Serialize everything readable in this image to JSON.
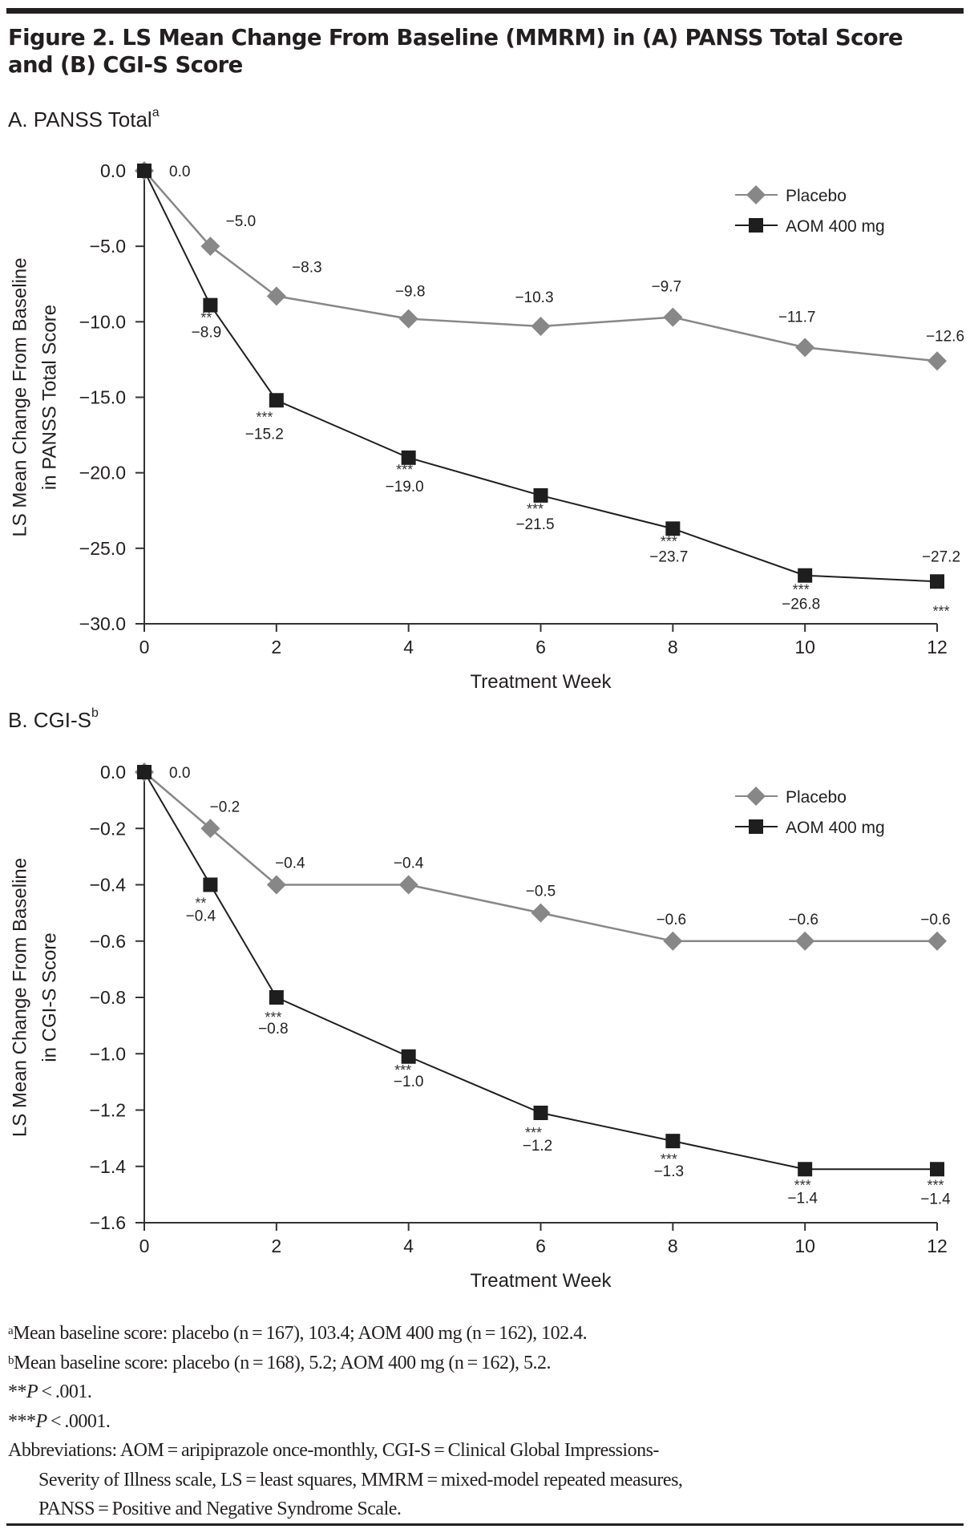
{
  "figure": {
    "title_line1": "Figure 2. LS Mean Change From Baseline (MMRM) in (A) PANSS Total Score",
    "title_line2": "and (B) CGI-S Score"
  },
  "chart_data": [
    {
      "id": "A",
      "type": "line",
      "panel_title": "A. PANSS Total",
      "panel_title_sup": "a",
      "title": "A. PANSS Total",
      "xlabel": "Treatment Week",
      "ylabel": [
        "LS Mean Change From Baseline",
        "in PANSS Total Score"
      ],
      "x": [
        0,
        1,
        2,
        4,
        6,
        8,
        10,
        12
      ],
      "x_ticks": [
        0,
        2,
        4,
        6,
        8,
        10,
        12
      ],
      "x_tick_labels": [
        "0",
        "2",
        "4",
        "6",
        "8",
        "10",
        "12"
      ],
      "xlim": [
        0,
        12
      ],
      "ylim": [
        -30,
        0
      ],
      "y_ticks": [
        0,
        -5,
        -10,
        -15,
        -20,
        -25,
        -30
      ],
      "y_tick_labels": [
        "0.0",
        "−5.0",
        "−10.0",
        "−15.0",
        "−20.0",
        "−25.0",
        "−30.0"
      ],
      "grid": false,
      "legend_position": "top-right",
      "series": [
        {
          "name": "Placebo",
          "marker": "diamond",
          "color": "#878787",
          "values": [
            0.0,
            -5.0,
            -8.3,
            -9.8,
            -10.3,
            -9.7,
            -11.7,
            -12.6
          ],
          "labels": [
            "",
            "−5.0",
            "−8.3",
            "−9.8",
            "−10.3",
            "−9.7",
            "−11.7",
            "−12.6"
          ],
          "significance": [
            "",
            "",
            "",
            "",
            "",
            "",
            "",
            ""
          ]
        },
        {
          "name": "AOM 400 mg",
          "marker": "square",
          "color": "#1e1e1e",
          "values": [
            0.0,
            -8.9,
            -15.2,
            -19.0,
            -21.5,
            -23.7,
            -26.8,
            -27.2
          ],
          "labels": [
            "0.0",
            "−8.9",
            "−15.2",
            "−19.0",
            "−21.5",
            "−23.7",
            "−26.8",
            "−27.2"
          ],
          "significance": [
            "",
            "**",
            "***",
            "***",
            "***",
            "***",
            "***",
            "***"
          ]
        }
      ]
    },
    {
      "id": "B",
      "type": "line",
      "panel_title": "B. CGI-S",
      "panel_title_sup": "b",
      "title": "B. CGI-S",
      "xlabel": "Treatment Week",
      "ylabel": [
        "LS Mean Change From Baseline",
        "in CGI-S Score"
      ],
      "x": [
        0,
        1,
        2,
        4,
        6,
        8,
        10,
        12
      ],
      "x_ticks": [
        0,
        2,
        4,
        6,
        8,
        10,
        12
      ],
      "x_tick_labels": [
        "0",
        "2",
        "4",
        "6",
        "8",
        "10",
        "12"
      ],
      "xlim": [
        0,
        12
      ],
      "ylim": [
        -1.6,
        0
      ],
      "y_ticks": [
        0,
        -0.2,
        -0.4,
        -0.6,
        -0.8,
        -1.0,
        -1.2,
        -1.4,
        -1.6
      ],
      "y_tick_labels": [
        "0.0",
        "−0.2",
        "−0.4",
        "−0.6",
        "−0.8",
        "−1.0",
        "−1.2",
        "−1.4",
        "−1.6"
      ],
      "grid": false,
      "legend_position": "top-right",
      "series": [
        {
          "name": "Placebo",
          "marker": "diamond",
          "color": "#878787",
          "values": [
            0.0,
            -0.2,
            -0.4,
            -0.4,
            -0.5,
            -0.6,
            -0.6,
            -0.6
          ],
          "labels": [
            "",
            "−0.2",
            "−0.4",
            "−0.4",
            "−0.5",
            "−0.6",
            "−0.6",
            "−0.6"
          ],
          "significance": [
            "",
            "",
            "",
            "",
            "",
            "",
            "",
            ""
          ]
        },
        {
          "name": "AOM 400 mg",
          "marker": "square",
          "color": "#1e1e1e",
          "values": [
            0.0,
            -0.4,
            -0.8,
            -1.01,
            -1.21,
            -1.31,
            -1.41,
            -1.41
          ],
          "labels": [
            "0.0",
            "−0.4",
            "−0.8",
            "−1.0",
            "−1.2",
            "−1.3",
            "−1.4",
            "−1.4"
          ],
          "significance": [
            "",
            "**",
            "***",
            "***",
            "***",
            "***",
            "***",
            "***"
          ]
        }
      ]
    }
  ],
  "footnotes": {
    "a_sup": "a",
    "a_text": "Mean baseline score: placebo (n = 167), 103.4; AOM 400 mg (n = 162), 102.4.",
    "b_sup": "b",
    "b_text": "Mean baseline score: placebo (n = 168), 5.2; AOM 400 mg (n = 162), 5.2.",
    "p2_stars": "**",
    "p2_p": "P",
    "p2_rest": " < .001.",
    "p3_stars": "***",
    "p3_p": "P",
    "p3_rest": " < .0001.",
    "abbrev_line1": "Abbreviations: AOM = aripiprazole once-monthly, CGI-S = Clinical Global Impressions-",
    "abbrev_line2": "Severity of Illness scale, LS = least squares, MMRM = mixed-model repeated measures,",
    "abbrev_line3": "PANSS = Positive and Negative Syndrome Scale."
  }
}
